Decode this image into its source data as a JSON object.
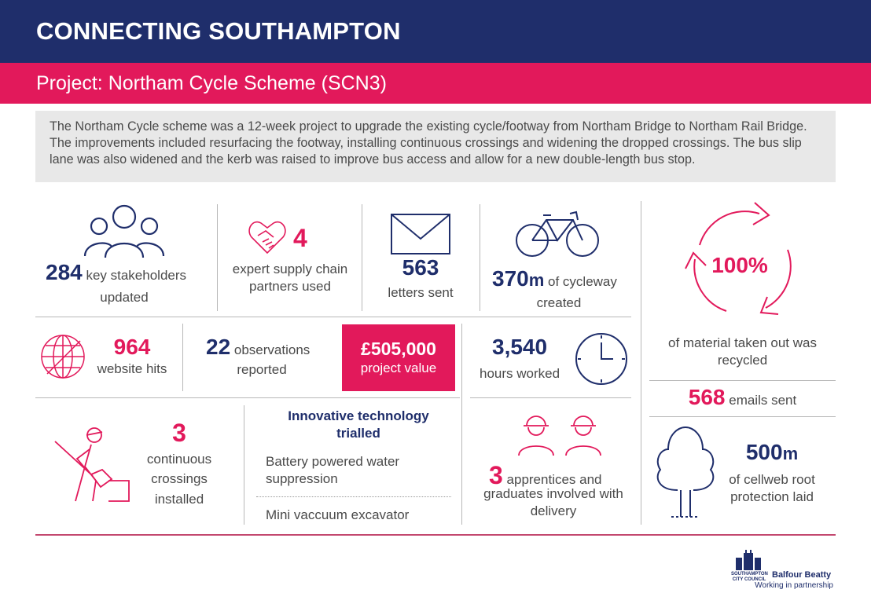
{
  "header": {
    "title": "CONNECTING SOUTHAMPTON"
  },
  "project": {
    "title": "Project: Northam Cycle Scheme (SCN3)"
  },
  "intro": "The Northam Cycle scheme was a 12-week project to upgrade the existing cycle/footway from Northam Bridge to Northam Rail Bridge. The improvements included resurfacing the footway, installing continuous crossings and widening the dropped crossings. The bus slip lane was also widened and the kerb was raised to improve bus access and allow for a new double-length bus stop.",
  "stats": {
    "stakeholders": {
      "value": "284",
      "label1": "key stakeholders",
      "label2": "updated",
      "icon": "people-group-icon"
    },
    "partners": {
      "value": "4",
      "label1": "expert supply chain",
      "label2": "partners used",
      "icon": "handshake-heart-icon"
    },
    "letters": {
      "value": "563",
      "label": "letters sent",
      "icon": "envelope-icon"
    },
    "cycleway": {
      "value": "370",
      "unit": "m",
      "label1": "of cycleway",
      "label2": "created",
      "icon": "bicycle-icon"
    },
    "recycled": {
      "value": "100%",
      "label1": "of material taken out was",
      "label2": "recycled",
      "icon": "recycle-arrows-icon"
    },
    "website": {
      "value": "964",
      "label": "website hits",
      "icon": "globe-icon"
    },
    "observations": {
      "value": "22",
      "label1": "observations",
      "label2": "reported"
    },
    "project_value": {
      "value": "£505,000",
      "label": "project value"
    },
    "hours": {
      "value": "3,540",
      "label": "hours worked",
      "icon": "clock-icon"
    },
    "emails": {
      "value": "568",
      "label": "emails sent"
    },
    "crossings": {
      "value": "3",
      "label1": "continuous",
      "label2": "crossings",
      "label3": "installed",
      "icon": "digging-worker-icon"
    },
    "innovation": {
      "heading1": "Innovative technology",
      "heading2": "trialled",
      "item1a": "Battery powered water",
      "item1b": "suppression",
      "item2": "Mini vaccuum excavator"
    },
    "apprentices": {
      "value": "3",
      "label1": "apprentices and",
      "label2": "graduates involved with",
      "label3": "delivery",
      "icon": "hardhat-workers-icon"
    },
    "cellweb": {
      "value": "500",
      "unit": "m",
      "label1": "of cellweb root",
      "label2": "protection laid",
      "icon": "tree-icon"
    }
  },
  "footer": {
    "council_line1": "SOUTHAMPTON",
    "council_line2": "CITY COUNCIL",
    "partner": "Balfour Beatty",
    "tagline": "Working in partnership"
  },
  "colors": {
    "navy": "#1f2e6b",
    "pink": "#e2195b",
    "grey": "#e8e8e8"
  }
}
